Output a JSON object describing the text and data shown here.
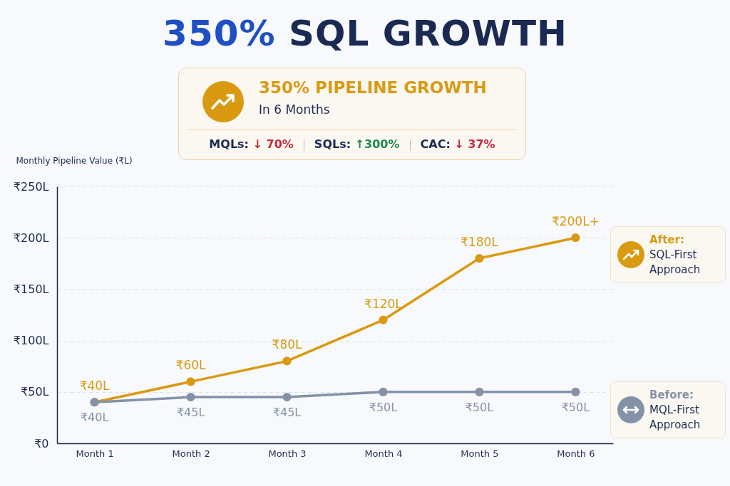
{
  "chart_data": {
    "type": "line",
    "title": "350% SQL GROWTH",
    "ylabel": "Monthly Pipeline Value (₹L)",
    "annotations": [
      "350% PIPELINE GROWTH",
      "In 6 Months",
      "MQLs: ↓ 70%",
      "SQLs: ↑300%",
      "CAC: ↓ 37%"
    ],
    "categories": [
      "Month 1",
      "Month 2",
      "Month 3",
      "Month 4",
      "Month 5",
      "Month 6"
    ],
    "series": [
      {
        "name": "After: SQL-First Approach",
        "color": "#d99a12",
        "values": [
          40,
          60,
          80,
          120,
          180,
          200
        ],
        "value_labels": [
          "₹40L",
          "₹60L",
          "₹80L",
          "₹120L",
          "₹180L",
          "₹200L+"
        ]
      },
      {
        "name": "Before: MQL-First Approach",
        "color": "#8492a8",
        "values": [
          40,
          45,
          45,
          50,
          50,
          50
        ],
        "value_labels": [
          "₹40L",
          "₹45L",
          "₹45L",
          "₹50L",
          "₹50L",
          "₹50L"
        ]
      }
    ],
    "ylim": [
      0,
      250
    ],
    "yticks": [
      {
        "value": 0,
        "label": "₹0"
      },
      {
        "value": 50,
        "label": "₹50L"
      },
      {
        "value": 100,
        "label": "₹100L"
      },
      {
        "value": 150,
        "label": "₹150L"
      },
      {
        "value": 200,
        "label": "₹200L"
      },
      {
        "value": 250,
        "label": "₹250L"
      }
    ],
    "grid": "y",
    "legend": "right",
    "marker": "circle",
    "line_style": "solid"
  }
}
